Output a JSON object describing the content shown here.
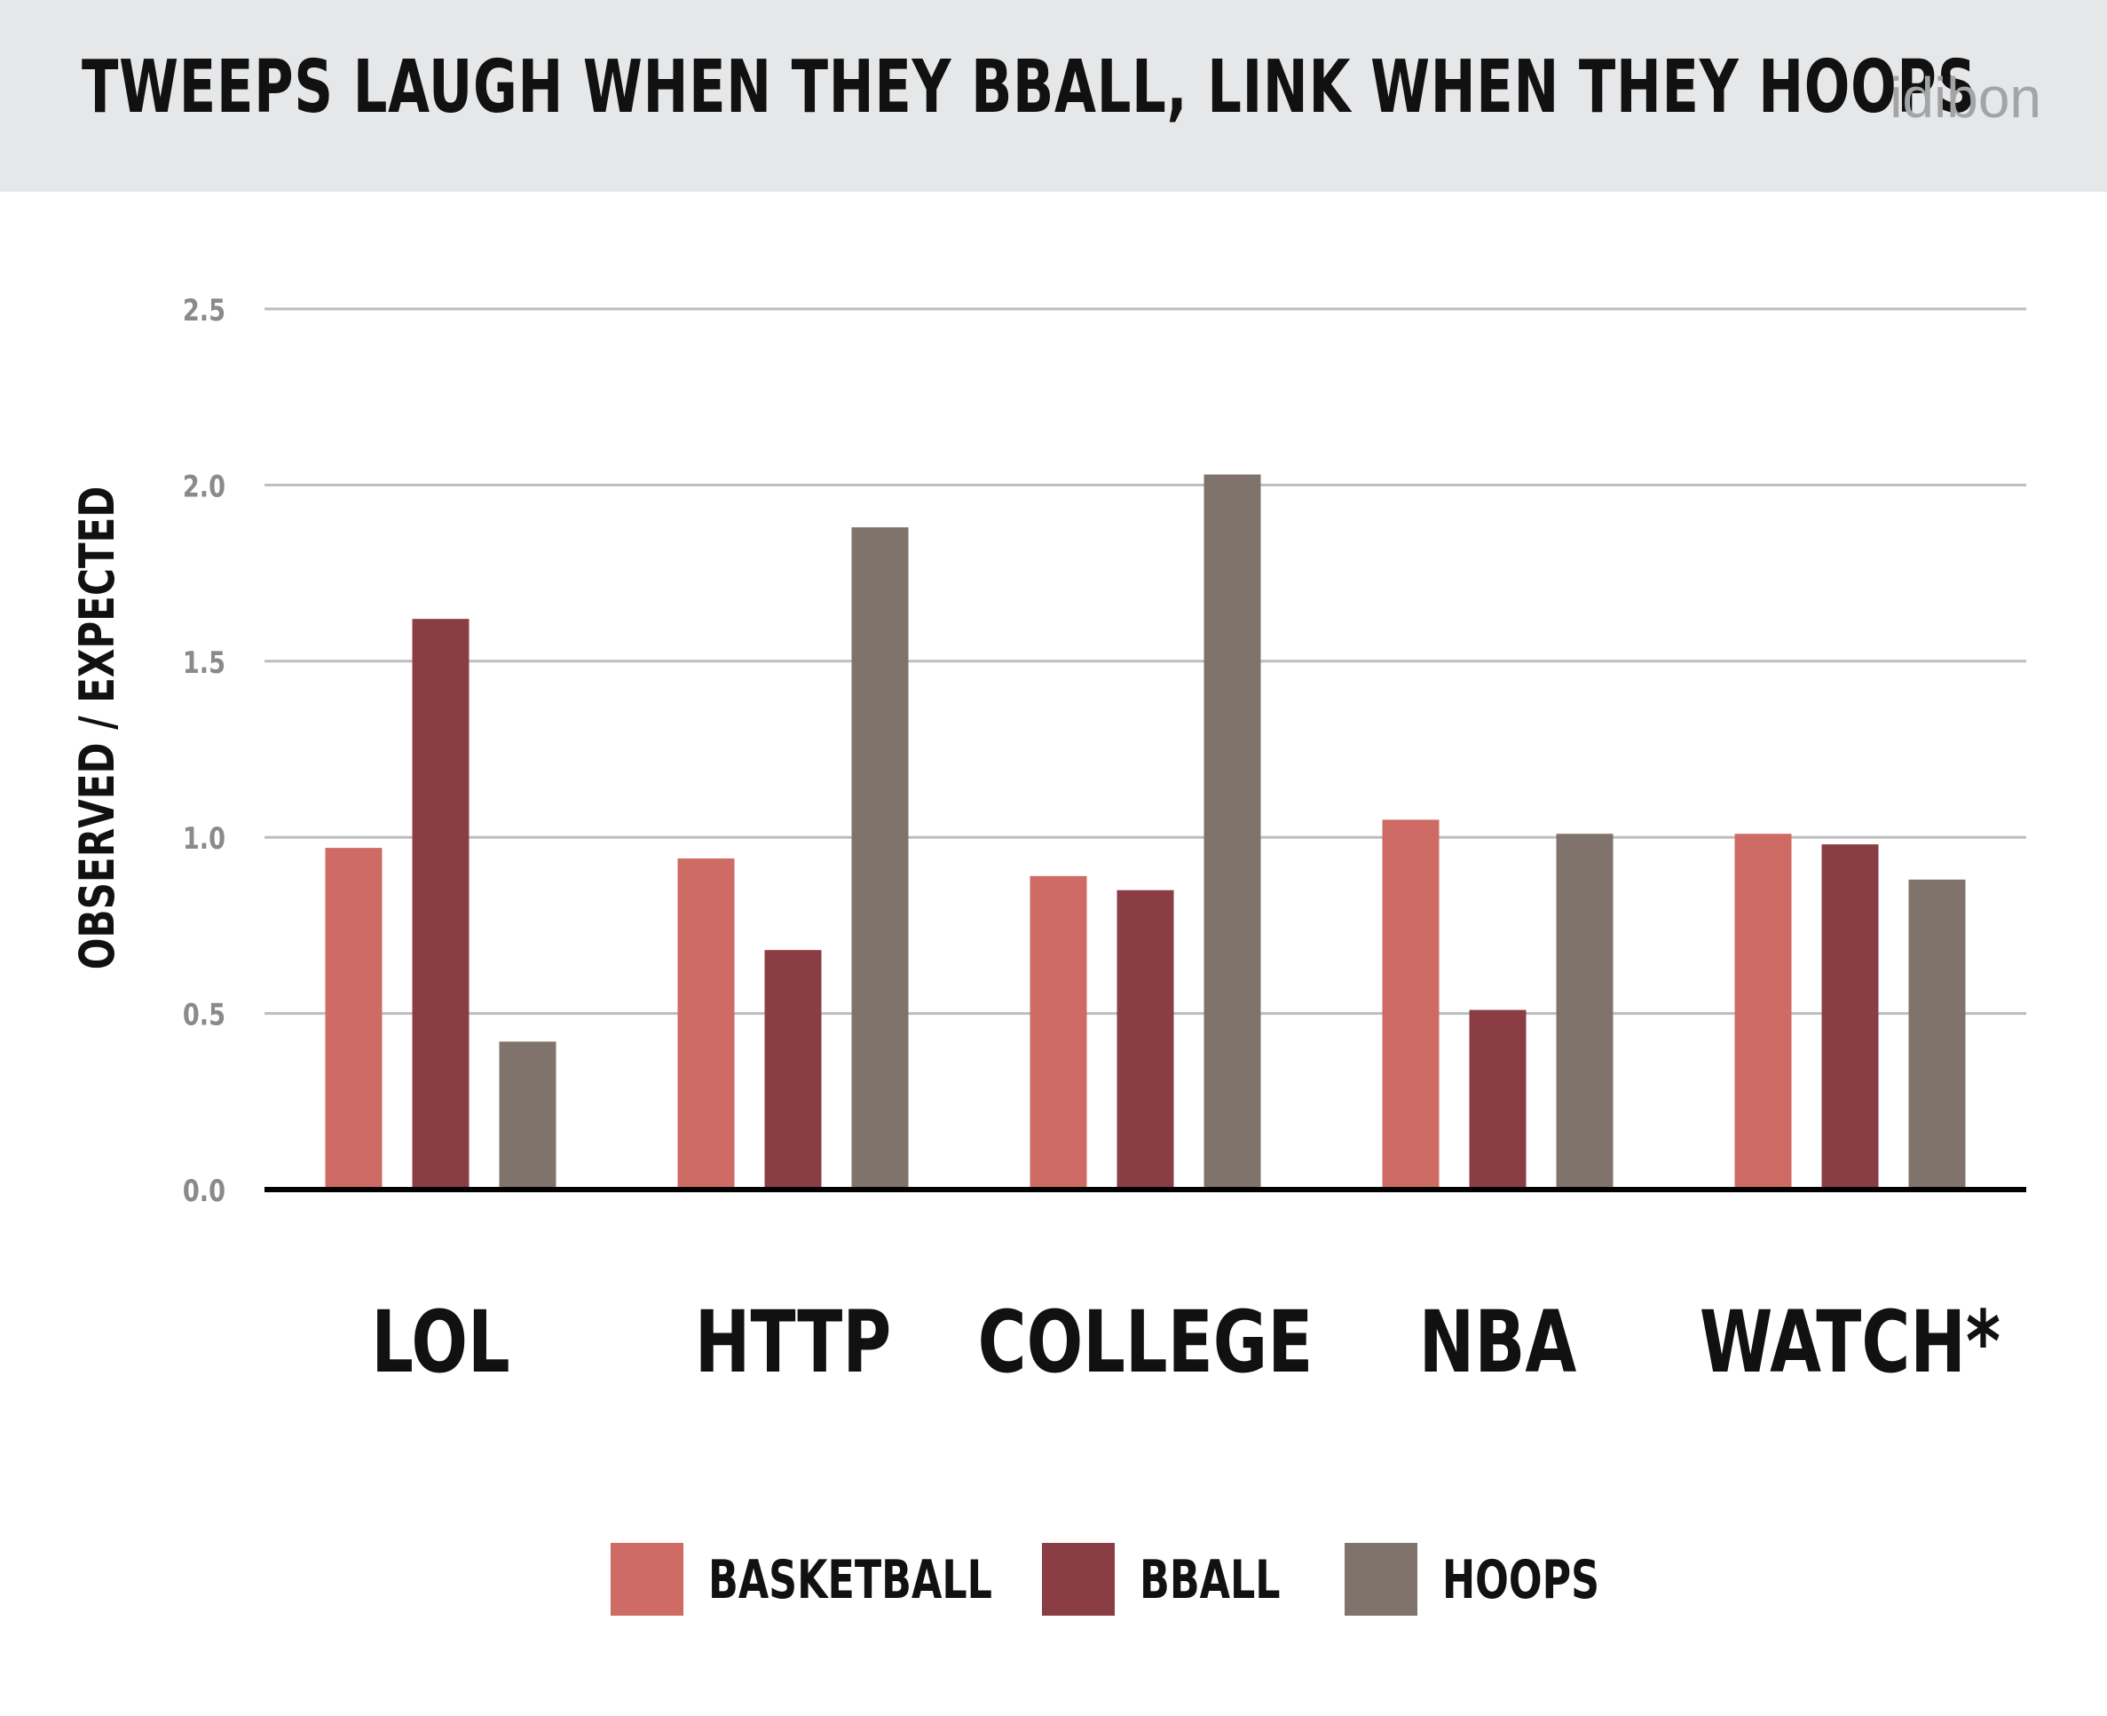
{
  "header": {
    "title": "TWEEPS LAUGH WHEN THEY BBALL, LINK WHEN THEY HOOPS",
    "brand": "idibon"
  },
  "chart_data": {
    "type": "bar",
    "title": "TWEEPS LAUGH WHEN THEY BBALL, LINK WHEN THEY HOOPS",
    "xlabel": "",
    "ylabel": "OBSERVED / EXPECTED",
    "ylim": [
      0,
      2.5
    ],
    "yticks": [
      "0.0",
      "0.5",
      "1.0",
      "1.5",
      "2.0",
      "2.5"
    ],
    "grid": true,
    "legend_position": "bottom",
    "categories": [
      "LOL",
      "HTTP",
      "COLLEGE",
      "NBA",
      "WATCH*"
    ],
    "series": [
      {
        "name": "BASKETBALL",
        "color": "#cf6b65",
        "values": [
          0.97,
          0.94,
          0.89,
          1.05,
          1.01
        ]
      },
      {
        "name": "BBALL",
        "color": "#8b3d44",
        "values": [
          1.62,
          0.68,
          0.85,
          0.51,
          0.98
        ]
      },
      {
        "name": "HOOPS",
        "color": "#80736b",
        "values": [
          0.42,
          1.88,
          2.03,
          1.01,
          0.88
        ]
      }
    ]
  }
}
